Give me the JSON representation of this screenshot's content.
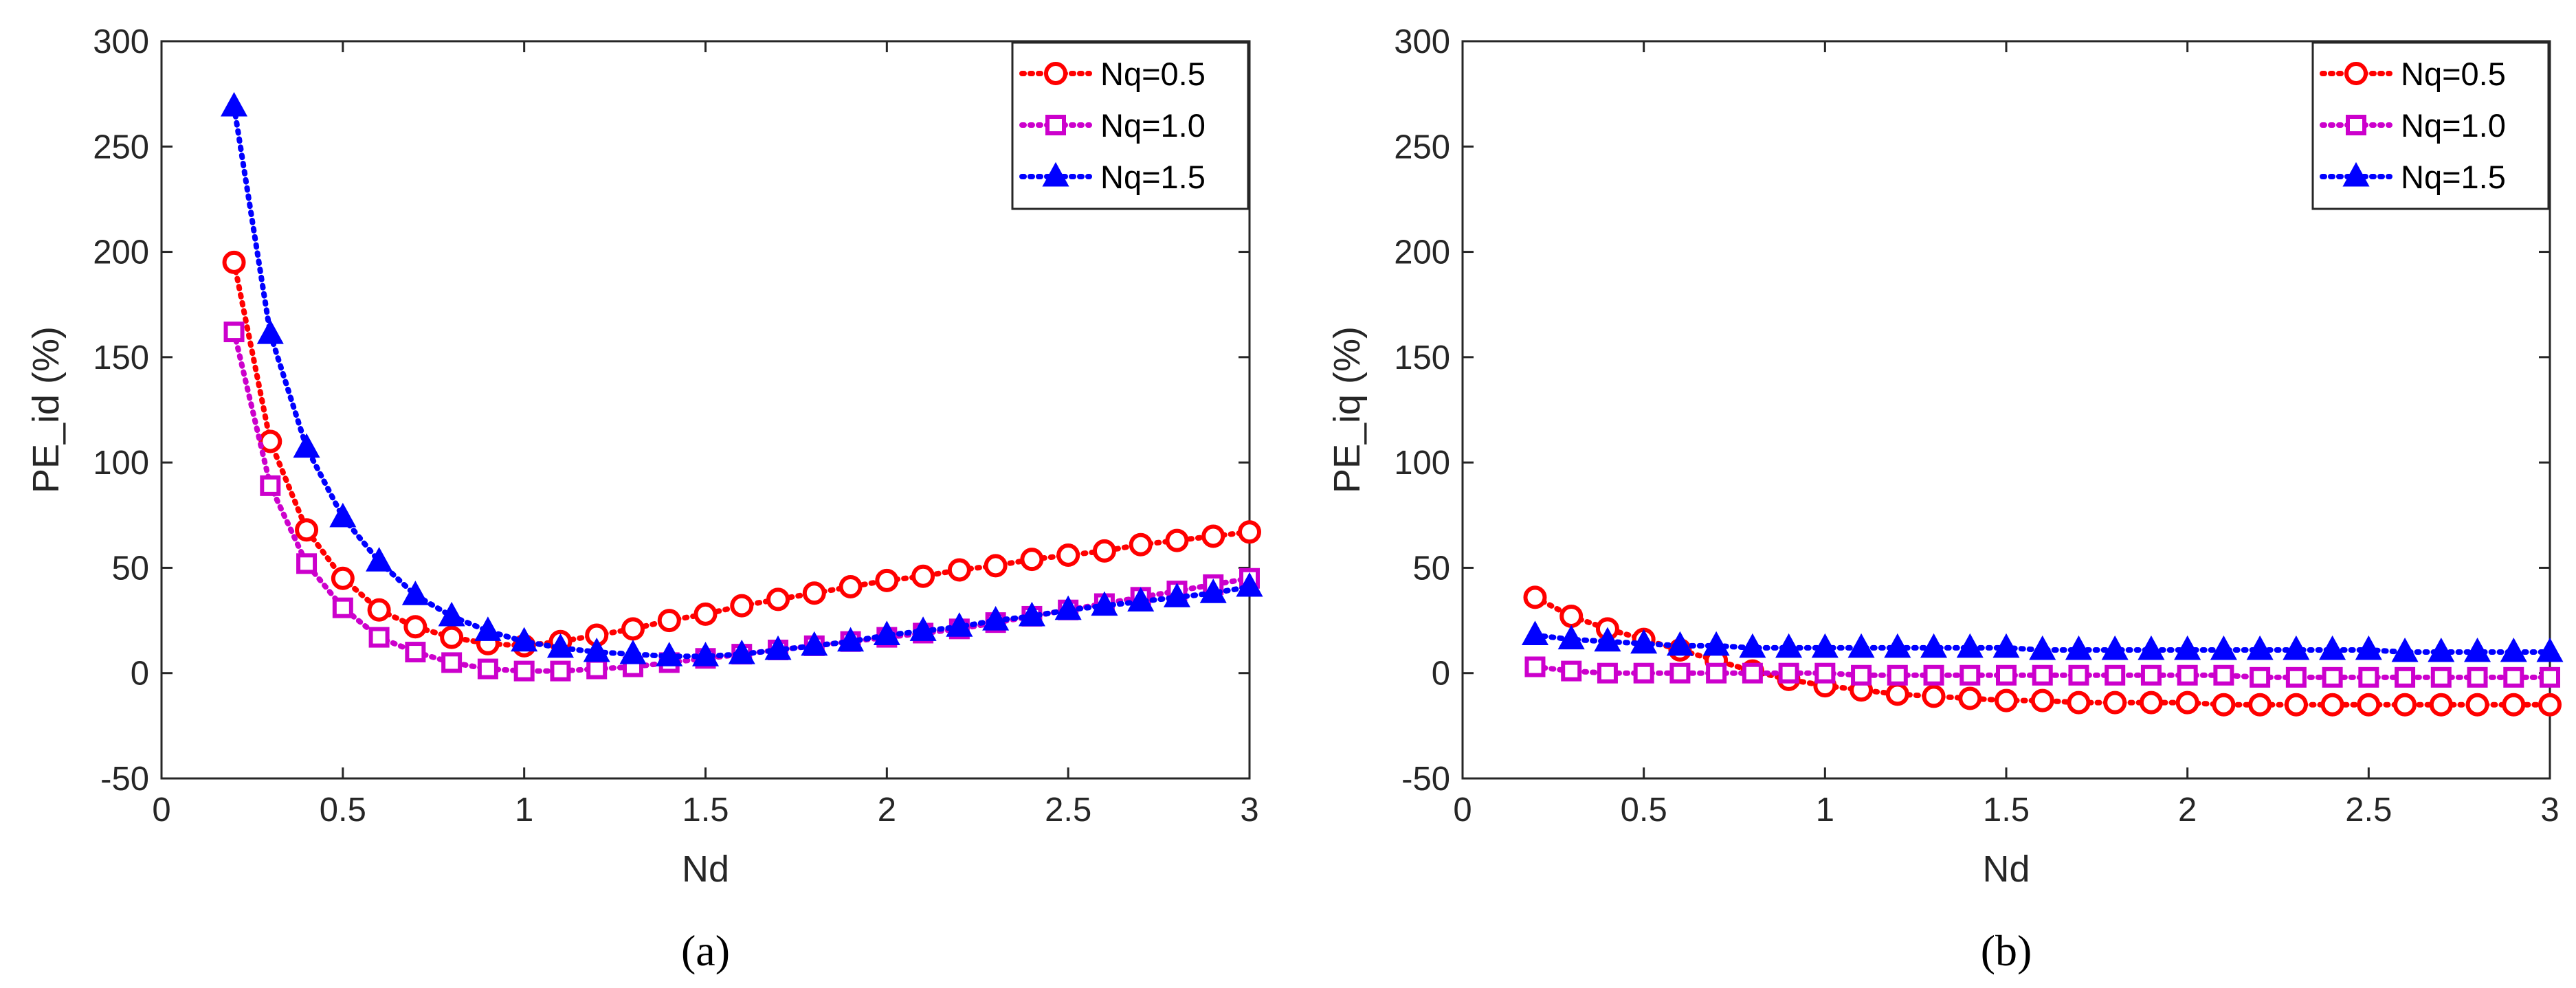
{
  "chart_data": [
    {
      "type": "line",
      "panel_label": "(a)",
      "xlabel": "Nd",
      "ylabel": "PE_id (%)",
      "xlim": [
        0,
        3
      ],
      "ylim": [
        -50,
        300
      ],
      "xticks": [
        "0",
        "0.5",
        "1",
        "1.5",
        "2",
        "2.5",
        "3"
      ],
      "yticks": [
        "-50",
        "0",
        "50",
        "100",
        "150",
        "200",
        "250",
        "300"
      ],
      "legend_position": "top-right",
      "x": [
        0.2,
        0.3,
        0.4,
        0.5,
        0.6,
        0.7,
        0.8,
        0.9,
        1.0,
        1.1,
        1.2,
        1.3,
        1.4,
        1.5,
        1.6,
        1.7,
        1.8,
        1.9,
        2.0,
        2.1,
        2.2,
        2.3,
        2.4,
        2.5,
        2.6,
        2.7,
        2.8,
        2.9,
        3.0
      ],
      "series": [
        {
          "name": "Nq=0.5",
          "color": "#ff0000",
          "marker": "circle",
          "values": [
            195,
            110,
            68,
            45,
            30,
            22,
            17,
            14,
            13,
            15,
            18,
            21,
            25,
            28,
            32,
            35,
            38,
            41,
            44,
            46,
            49,
            51,
            54,
            56,
            58,
            61,
            63,
            65,
            67
          ]
        },
        {
          "name": "Nq=1.0",
          "color": "#cc00cc",
          "marker": "square",
          "values": [
            162,
            89,
            52,
            31,
            17,
            10,
            5,
            2,
            1,
            1,
            2,
            3,
            5,
            7,
            9,
            11,
            13,
            15,
            17,
            19,
            21,
            24,
            27,
            30,
            33,
            36,
            39,
            42,
            45
          ]
        },
        {
          "name": "Nq=1.5",
          "color": "#0000ff",
          "marker": "triangle",
          "values": [
            269,
            161,
            107,
            74,
            53,
            37,
            27,
            20,
            15,
            12,
            10,
            9,
            8,
            8,
            9,
            11,
            13,
            15,
            18,
            20,
            22,
            25,
            27,
            30,
            32,
            34,
            36,
            38,
            41
          ]
        }
      ]
    },
    {
      "type": "line",
      "panel_label": "(b)",
      "xlabel": "Nd",
      "ylabel": "PE_iq (%)",
      "xlim": [
        0,
        3
      ],
      "ylim": [
        -50,
        300
      ],
      "xticks": [
        "0",
        "0.5",
        "1",
        "1.5",
        "2",
        "2.5",
        "3"
      ],
      "yticks": [
        "-50",
        "0",
        "50",
        "100",
        "150",
        "200",
        "250",
        "300"
      ],
      "legend_position": "top-right",
      "x": [
        0.2,
        0.3,
        0.4,
        0.5,
        0.6,
        0.7,
        0.8,
        0.9,
        1.0,
        1.1,
        1.2,
        1.3,
        1.4,
        1.5,
        1.6,
        1.7,
        1.8,
        1.9,
        2.0,
        2.1,
        2.2,
        2.3,
        2.4,
        2.5,
        2.6,
        2.7,
        2.8,
        2.9,
        3.0
      ],
      "series": [
        {
          "name": "Nq=0.5",
          "color": "#ff0000",
          "marker": "circle",
          "values": [
            36,
            27,
            21,
            16,
            11,
            6,
            1,
            -3,
            -6,
            -8,
            -10,
            -11,
            -12,
            -13,
            -13,
            -14,
            -14,
            -14,
            -14,
            -15,
            -15,
            -15,
            -15,
            -15,
            -15,
            -15,
            -15,
            -15,
            -15
          ]
        },
        {
          "name": "Nq=1.0",
          "color": "#cc00cc",
          "marker": "square",
          "values": [
            3,
            1,
            0,
            0,
            0,
            0,
            0,
            0,
            0,
            -1,
            -1,
            -1,
            -1,
            -1,
            -1,
            -1,
            -1,
            -1,
            -1,
            -1,
            -2,
            -2,
            -2,
            -2,
            -2,
            -2,
            -2,
            -2,
            -2
          ]
        },
        {
          "name": "Nq=1.5",
          "color": "#0000ff",
          "marker": "triangle",
          "values": [
            18,
            16,
            15,
            14,
            13,
            13,
            12,
            12,
            12,
            12,
            12,
            12,
            12,
            12,
            11,
            11,
            11,
            11,
            11,
            11,
            11,
            11,
            11,
            11,
            10,
            10,
            10,
            10,
            10
          ]
        }
      ]
    }
  ]
}
